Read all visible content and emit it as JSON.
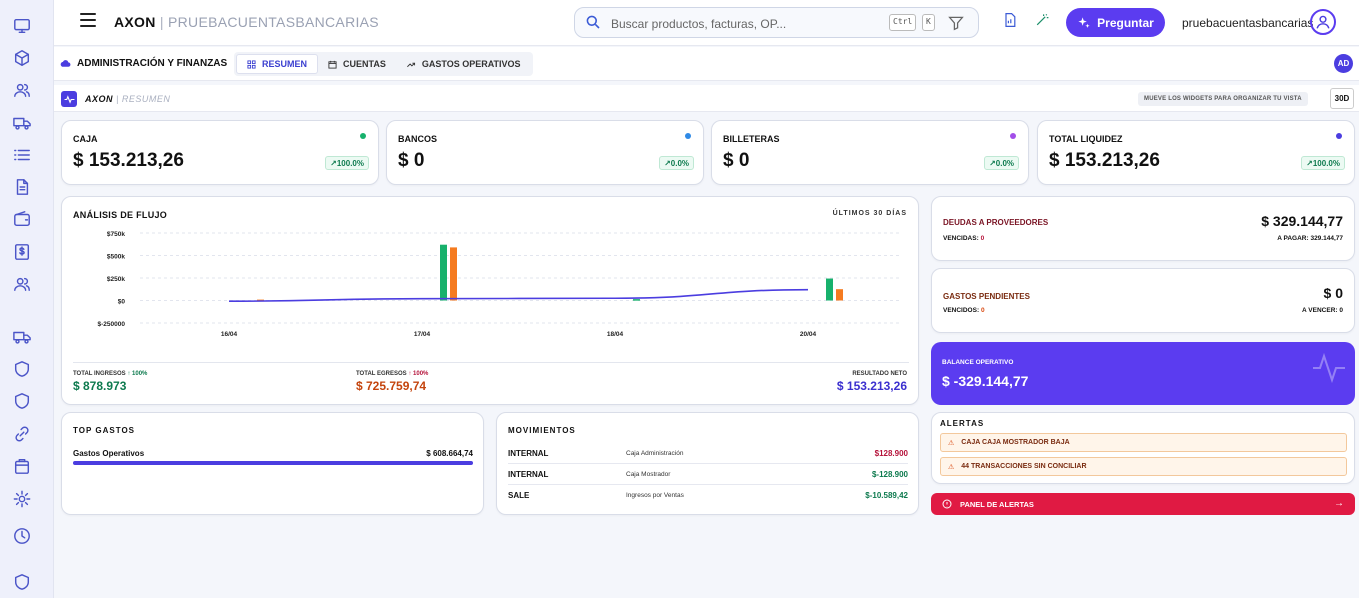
{
  "app": {
    "brand": "AXON",
    "workspace": "PRUEBACUENTASBANCARIAS"
  },
  "search": {
    "placeholder": "Buscar productos, facturas, OP...",
    "kbd1": "Ctrl",
    "kbd2": "K"
  },
  "ask_button": "Preguntar",
  "user": {
    "name": "pruebacuentasbancarias"
  },
  "nav": {
    "department": "ADMINISTRACIÓN Y FINANZAS",
    "tabs": [
      {
        "label": "RESUMEN",
        "active": true
      },
      {
        "label": "CUENTAS"
      },
      {
        "label": "GASTOS OPERATIVOS"
      }
    ],
    "avatar": "AD"
  },
  "crumb": {
    "app": "AXON",
    "page": "RESUMEN",
    "hint": "MUEVE LOS WIDGETS PARA ORGANIZAR TU VISTA",
    "range": "30D"
  },
  "kpis": [
    {
      "label": "CAJA",
      "value": "$ 153.213,26",
      "change": "100.0%",
      "dot": "#17b16c"
    },
    {
      "label": "BANCOS",
      "value": "$ 0",
      "change": "0.0%",
      "dot": "#2f8ae6"
    },
    {
      "label": "BILLETERAS",
      "value": "$ 0",
      "change": "0.0%",
      "dot": "#a24ee8"
    },
    {
      "label": "TOTAL LIQUIDEZ",
      "value": "$ 153.213,26",
      "change": "100.0%",
      "dot": "#4b3de0"
    }
  ],
  "flow": {
    "title": "ANÁLISIS DE FLUJO",
    "range": "ÚLTIMOS 30 DÍAS",
    "totals": {
      "income_label": "TOTAL INGRESOS",
      "income_change": "↑ 100%",
      "income": "$ 878.973",
      "expense_label": "TOTAL EGRESOS",
      "expense_change": "↑ 100%",
      "expense": "$ 725.759,74",
      "net_label": "RESULTADO NETO",
      "net": "$ 153.213,26"
    }
  },
  "chart_data": {
    "type": "bar",
    "categories": [
      "16/04",
      "17/04",
      "18/04",
      "20/04"
    ],
    "series": [
      {
        "name": "Ingresos",
        "values": [
          0,
          620000,
          15000,
          243973
        ],
        "color": "#17b16c"
      },
      {
        "name": "Egresos",
        "values": [
          10000,
          590000,
          0,
          125760
        ],
        "color": "#f57b20"
      },
      {
        "name": "Resultado",
        "type": "line",
        "values": [
          -8000,
          20000,
          25000,
          120000
        ],
        "color": "#4b3de0"
      }
    ],
    "yticks": [
      "$750k",
      "$500k",
      "$250k",
      "$0",
      "$-250000"
    ],
    "ytick_values": [
      750000,
      500000,
      250000,
      0,
      -250000
    ],
    "ylim": [
      -250000,
      750000
    ],
    "grid": true
  },
  "top_gastos": {
    "title": "TOP GASTOS",
    "items": [
      {
        "name": "Gastos Operativos",
        "amount": "$ 608.664,74",
        "share": 1.0
      }
    ]
  },
  "movimientos": {
    "title": "MOVIMIENTOS",
    "rows": [
      {
        "type": "INTERNAL",
        "desc": "Caja Administración",
        "amount": "$128.900",
        "color": "#b5123a"
      },
      {
        "type": "INTERNAL",
        "desc": "Caja Mostrador",
        "amount": "$-128.900",
        "color": "#0d7a4e"
      },
      {
        "type": "SALE",
        "desc": "Ingresos por Ventas",
        "amount": "$-10.589,42",
        "color": "#0d7a4e"
      }
    ]
  },
  "deudas": {
    "label": "DEUDAS A PROVEEDORES",
    "value": "$ 329.144,77",
    "overdue_label": "VENCIDAS:",
    "overdue": "0",
    "due_label": "A PAGAR:",
    "due": "329.144,77"
  },
  "gastos_pend": {
    "label": "GASTOS PENDIENTES",
    "value": "$ 0",
    "overdue_label": "VENCIDOS:",
    "overdue": "0",
    "due_label": "A VENCER:",
    "due": "0"
  },
  "balance": {
    "label": "BALANCE OPERATIVO",
    "value": "$ -329.144,77"
  },
  "alertas": {
    "title": "ALERTAS",
    "items": [
      "CAJA CAJA MOSTRADOR BAJA",
      "44 TRANSACCIONES SIN CONCILIAR"
    ],
    "panel": "PANEL DE ALERTAS"
  }
}
